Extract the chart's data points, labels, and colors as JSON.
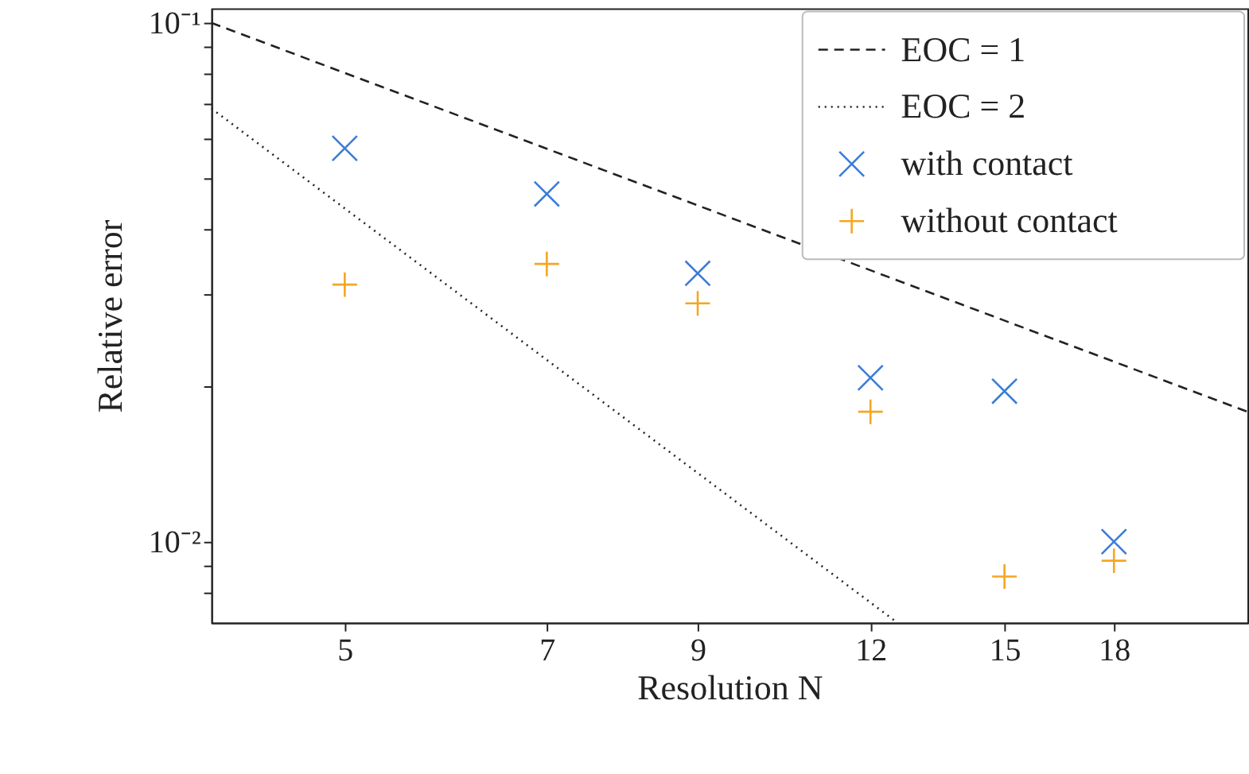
{
  "chart_data": {
    "type": "scatter",
    "xlabel": "Resolution N",
    "ylabel": "Relative error",
    "log": "xy",
    "grid": false,
    "legend": "top right",
    "x": [
      5,
      7,
      9,
      12,
      15,
      18
    ],
    "xlim": [
      4.004,
      22.48
    ],
    "xticks": [
      5,
      7,
      9,
      12,
      15,
      18
    ],
    "ylim": [
      0.00698,
      0.1066
    ],
    "yticks": [
      {
        "value": 0.1,
        "label": "10⁻¹"
      },
      {
        "value": 0.01,
        "label": "10⁻²"
      },
      {
        "value": 0.008,
        "label": null
      },
      {
        "value": 0.009,
        "label": null
      },
      {
        "value": 0.02,
        "label": null
      },
      {
        "value": 0.03,
        "label": null
      },
      {
        "value": 0.04,
        "label": null
      },
      {
        "value": 0.05,
        "label": null
      },
      {
        "value": 0.06,
        "label": null
      },
      {
        "value": 0.07,
        "label": null
      },
      {
        "value": 0.08,
        "label": null
      },
      {
        "value": 0.09,
        "label": null
      }
    ],
    "series": [
      {
        "name": "EOC = 1",
        "type": "line",
        "line_style": "dashed",
        "color": "#222222",
        "x": [
          4.004,
          22.48
        ],
        "values": [
          0.1,
          0.0178
        ]
      },
      {
        "name": "EOC = 2",
        "type": "line",
        "line_style": "dotted",
        "color": "#222222",
        "x": [
          4.004,
          12.55
        ],
        "values": [
          0.0684,
          0.00698
        ]
      },
      {
        "name": "with contact",
        "marker": "cross",
        "color": "#3b7dd8",
        "values": [
          0.0573,
          0.0468,
          0.0329,
          0.0207,
          0.0195,
          0.01
        ]
      },
      {
        "name": "without contact",
        "marker": "plus",
        "color": "#f5a623",
        "values": [
          0.0313,
          0.0343,
          0.0288,
          0.0178,
          0.00857,
          0.00919
        ]
      }
    ]
  }
}
